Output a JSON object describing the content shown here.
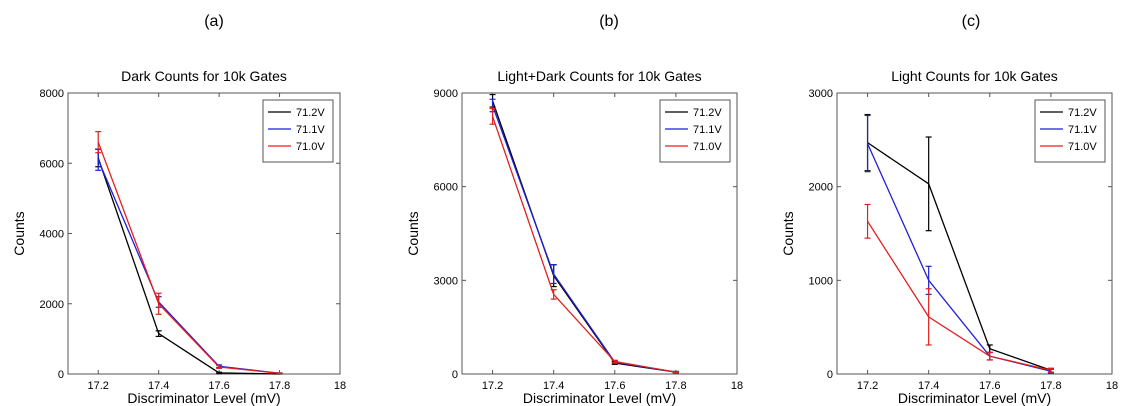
{
  "panel_labels": [
    "(a)",
    "(b)",
    "(c)"
  ],
  "legend_labels": [
    "71.2V",
    "71.1V",
    "71.0V"
  ],
  "colors": {
    "71.2V": "#000000",
    "71.1V": "#1f1fd6",
    "71.0V": "#e02020"
  },
  "chart_data": [
    {
      "type": "line",
      "title": "Dark Counts for 10k Gates",
      "xlabel": "Discriminator Level (mV)",
      "ylabel": "Counts",
      "xlim": [
        17.1,
        18.0
      ],
      "ylim": [
        0,
        8000
      ],
      "xticks": [
        "17.2",
        "17.4",
        "17.6",
        "17.8",
        "18"
      ],
      "yticks": [
        "0",
        "2000",
        "4000",
        "6000",
        "8000"
      ],
      "legend": "top-right",
      "x": [
        17.2,
        17.4,
        17.6,
        17.8
      ],
      "series": [
        {
          "name": "71.2V",
          "values": [
            6150,
            1150,
            30,
            0
          ],
          "errors": [
            250,
            80,
            20,
            10
          ]
        },
        {
          "name": "71.1V",
          "values": [
            6100,
            2050,
            220,
            20
          ],
          "errors": [
            300,
            150,
            40,
            10
          ]
        },
        {
          "name": "71.0V",
          "values": [
            6600,
            2000,
            200,
            20
          ],
          "errors": [
            300,
            300,
            40,
            10
          ]
        }
      ]
    },
    {
      "type": "line",
      "title": "Light+Dark Counts for 10k Gates",
      "xlabel": "Discriminator Level (mV)",
      "ylabel": "Counts",
      "xlim": [
        17.1,
        18.0
      ],
      "ylim": [
        0,
        9000
      ],
      "xticks": [
        "17.2",
        "17.4",
        "17.6",
        "17.8",
        "18"
      ],
      "yticks": [
        "0",
        "3000",
        "6000",
        "9000"
      ],
      "legend": "top-right",
      "x": [
        17.2,
        17.4,
        17.6,
        17.8
      ],
      "series": [
        {
          "name": "71.2V",
          "values": [
            8750,
            3150,
            350,
            60
          ],
          "errors": [
            200,
            350,
            40,
            20
          ]
        },
        {
          "name": "71.1V",
          "values": [
            8600,
            3200,
            380,
            60
          ],
          "errors": [
            200,
            300,
            40,
            20
          ]
        },
        {
          "name": "71.0V",
          "values": [
            8250,
            2550,
            400,
            60
          ],
          "errors": [
            250,
            150,
            40,
            20
          ]
        }
      ]
    },
    {
      "type": "line",
      "title": "Light Counts for 10k Gates",
      "xlabel": "Discriminator Level (mV)",
      "ylabel": "Counts",
      "xlim": [
        17.1,
        18.0
      ],
      "ylim": [
        0,
        3000
      ],
      "xticks": [
        "17.2",
        "17.4",
        "17.6",
        "17.8",
        "18"
      ],
      "yticks": [
        "0",
        "1000",
        "2000",
        "3000"
      ],
      "legend": "top-right",
      "x": [
        17.2,
        17.4,
        17.6,
        17.8
      ],
      "series": [
        {
          "name": "71.2V",
          "values": [
            2470,
            2030,
            270,
            40
          ],
          "errors": [
            300,
            500,
            40,
            20
          ]
        },
        {
          "name": "71.1V",
          "values": [
            2460,
            1000,
            190,
            30
          ],
          "errors": [
            300,
            150,
            40,
            20
          ]
        },
        {
          "name": "71.0V",
          "values": [
            1630,
            610,
            190,
            40
          ],
          "errors": [
            180,
            300,
            40,
            20
          ]
        }
      ]
    }
  ]
}
